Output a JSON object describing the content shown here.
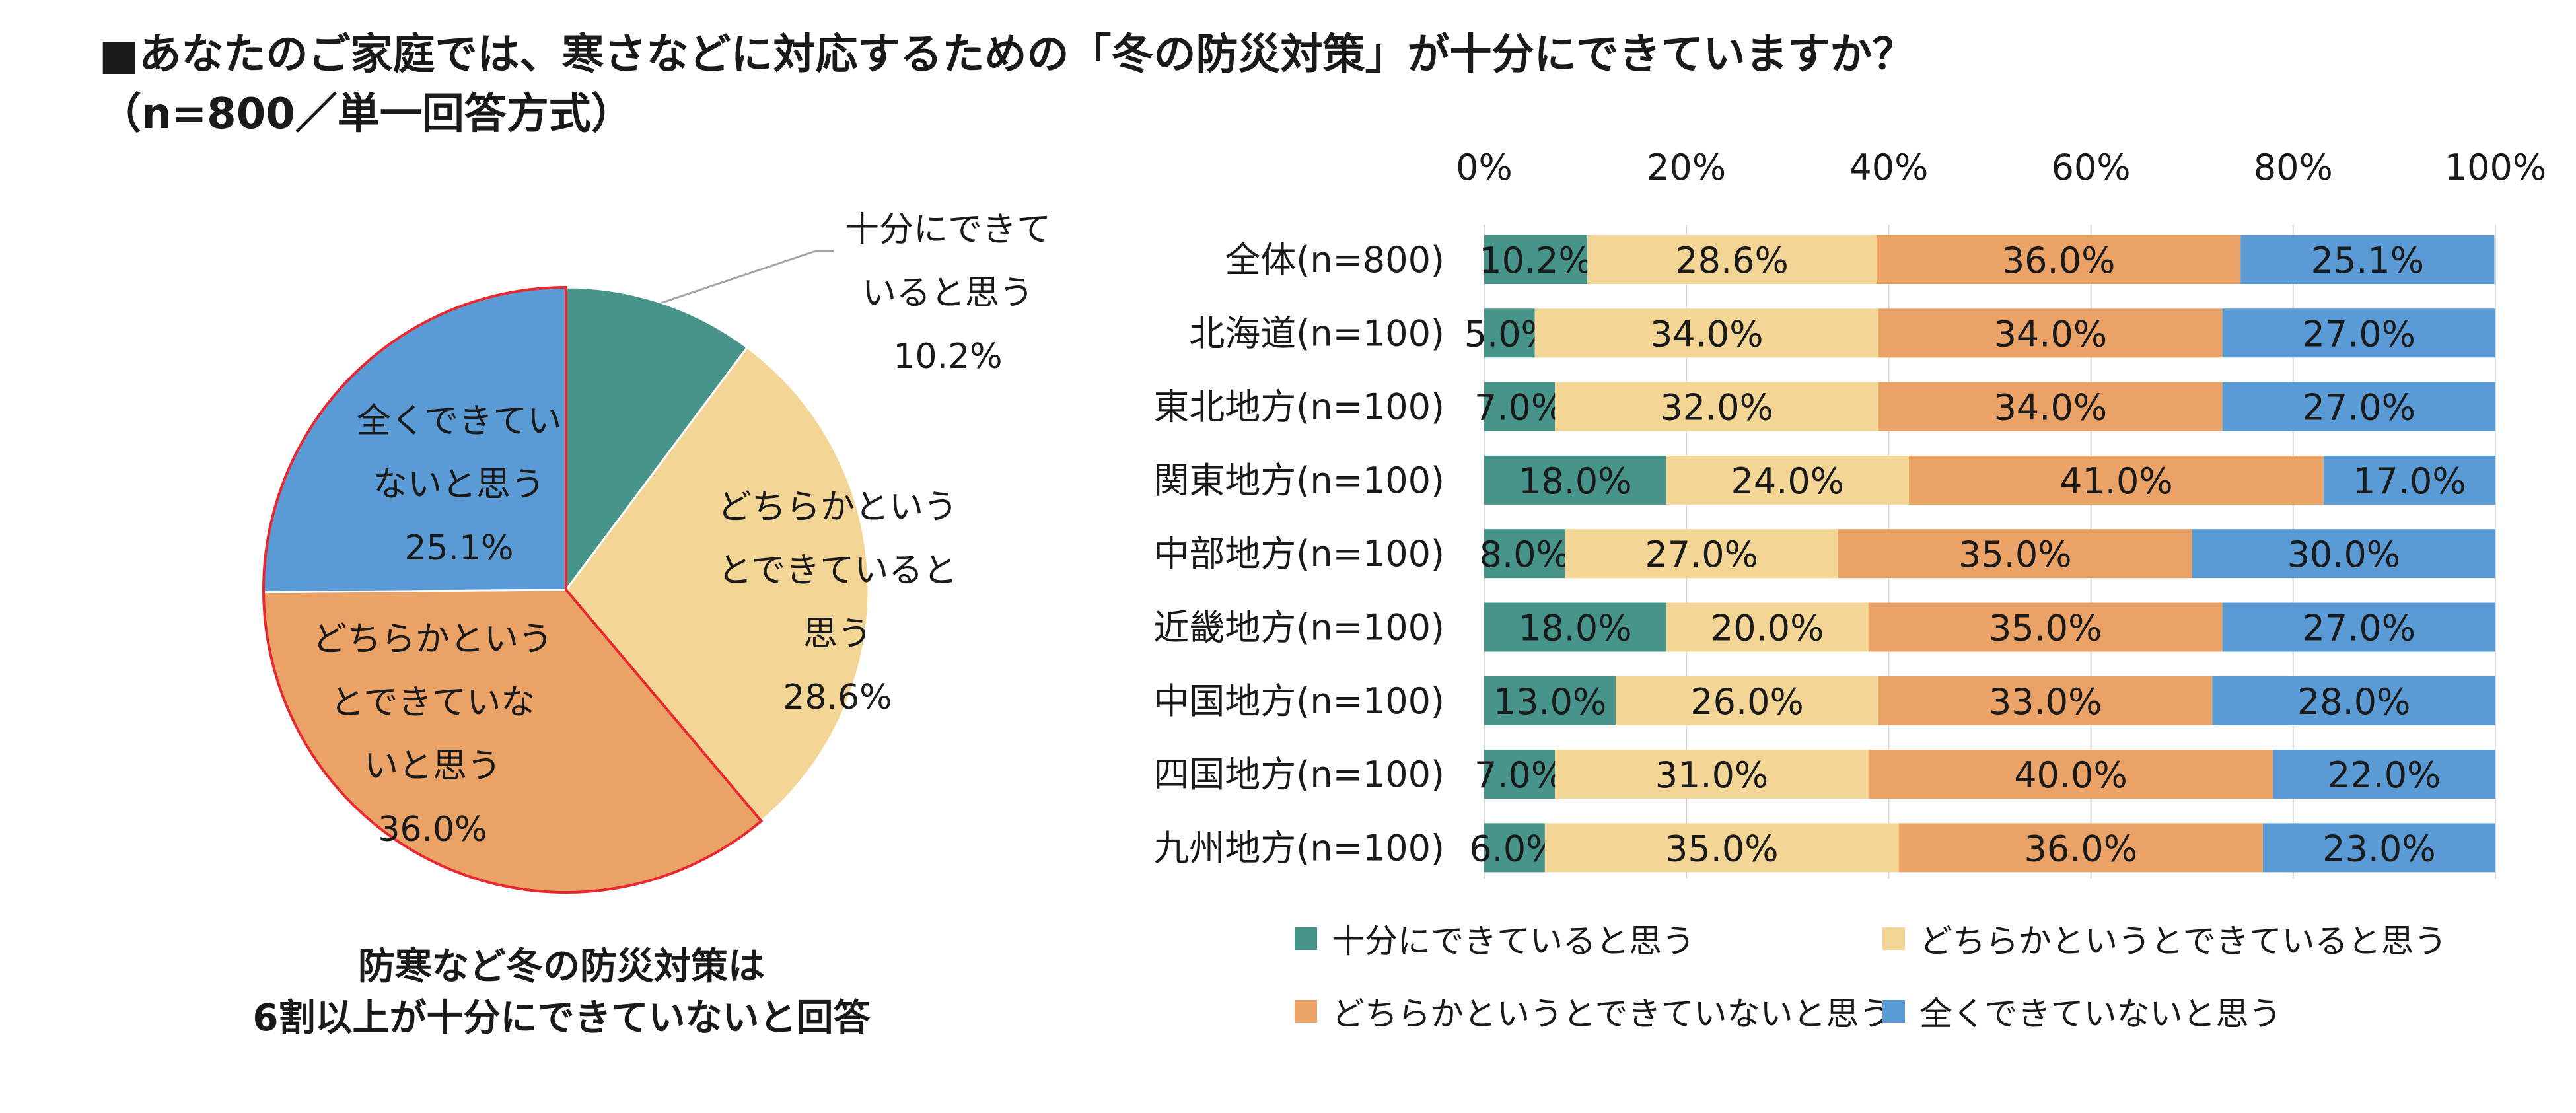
{
  "title": {
    "line1": "■あなたのご家庭では、寒さなどに対応するための「冬の防災対策」が十分にできていますか？",
    "line2": "（n=800／単一回答方式）"
  },
  "colors": {
    "sufficient": "#46948A",
    "somewhat_sufficient": "#F3D596",
    "somewhat_insufficient": "#EAA266",
    "not_at_all": "#5B9BD5"
  },
  "categories": [
    "十分にできていると思う",
    "どちらかというとできていると思う",
    "どちらかというとできていないと思う",
    "全くできていないと思う"
  ],
  "pie": {
    "labels": [
      {
        "lines": [
          "十分にできて",
          "いると思う"
        ],
        "value": "10.2%"
      },
      {
        "lines": [
          "どちらかという",
          "とできていると",
          "思う"
        ],
        "value": "28.6%"
      },
      {
        "lines": [
          "どちらかという",
          "とできていな",
          "いと思う"
        ],
        "value": "36.0%"
      },
      {
        "lines": [
          "全くできてい",
          "ないと思う"
        ],
        "value": "25.1%"
      }
    ]
  },
  "caption": {
    "line1": "防寒など冬の防災対策は",
    "line2": "6割以上が十分にできていないと回答"
  },
  "chart_data": [
    {
      "type": "pie",
      "title": "全体(n=800)",
      "categories": [
        "十分にできていると思う",
        "どちらかというとできていると思う",
        "どちらかというとできていないと思う",
        "全くできていないと思う"
      ],
      "values": [
        10.2,
        28.6,
        36.0,
        25.1
      ],
      "unit": "%"
    },
    {
      "type": "bar",
      "orientation": "horizontal",
      "stacked": "100%",
      "categories": [
        "全体(n=800)",
        "北海道(n=100)",
        "東北地方(n=100)",
        "関東地方(n=100)",
        "中部地方(n=100)",
        "近畿地方(n=100)",
        "中国地方(n=100)",
        "四国地方(n=100)",
        "九州地方(n=100)"
      ],
      "series": [
        {
          "name": "十分にできていると思う",
          "values": [
            10.2,
            5.0,
            7.0,
            18.0,
            8.0,
            18.0,
            13.0,
            7.0,
            6.0
          ]
        },
        {
          "name": "どちらかというとできていると思う",
          "values": [
            28.6,
            34.0,
            32.0,
            24.0,
            27.0,
            20.0,
            26.0,
            31.0,
            35.0
          ]
        },
        {
          "name": "どちらかというとできていないと思う",
          "values": [
            36.0,
            34.0,
            34.0,
            41.0,
            35.0,
            35.0,
            33.0,
            40.0,
            36.0
          ]
        },
        {
          "name": "全くできていないと思う",
          "values": [
            25.1,
            27.0,
            27.0,
            17.0,
            30.0,
            27.0,
            28.0,
            22.0,
            23.0
          ]
        }
      ],
      "xlim": [
        0,
        100
      ],
      "x_ticks": [
        "0%",
        "20%",
        "40%",
        "60%",
        "80%",
        "100%"
      ],
      "xlabel": "",
      "ylabel": "",
      "legend": "bottom"
    }
  ]
}
